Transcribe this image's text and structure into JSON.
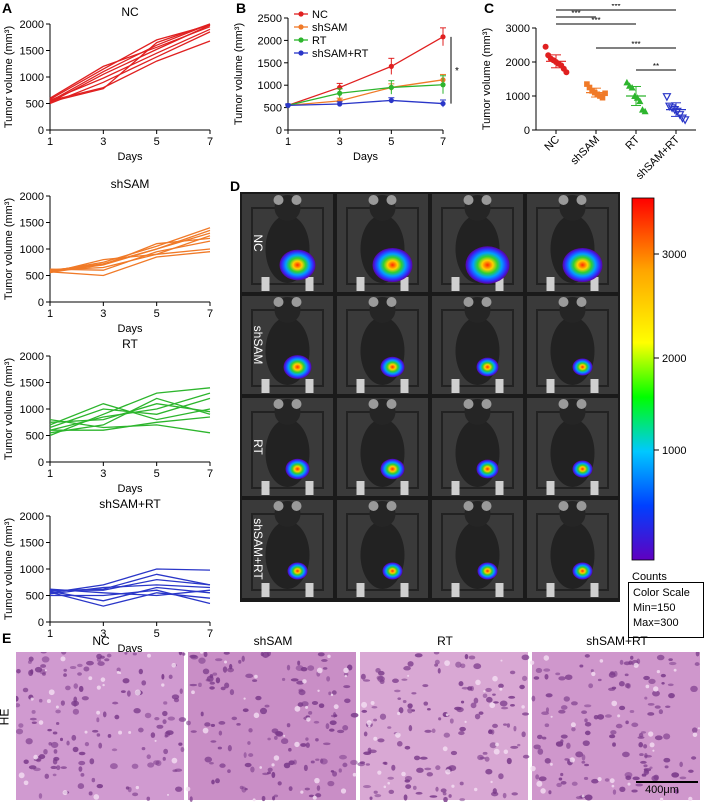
{
  "panels": {
    "A": "A",
    "B": "B",
    "C": "C",
    "D": "D",
    "E": "E"
  },
  "colors": {
    "NC": "#e02020",
    "shSAM": "#f07a28",
    "RT": "#2db52d",
    "shSAM+RT": "#2a36c8"
  },
  "chart_data": [
    {
      "id": "A1",
      "type": "line",
      "title": "NC",
      "xlabel": "Days",
      "ylabel": "Tumor volume (mm³)",
      "x": [
        1,
        3,
        5,
        7
      ],
      "xticks": [
        "1",
        "3",
        "5",
        "7"
      ],
      "ylim": [
        0,
        2000
      ],
      "yticks": [
        "0",
        "500",
        "1000",
        "1500",
        "2000"
      ],
      "color": "#e02020",
      "series": [
        {
          "name": "m1",
          "values": [
            520,
            1050,
            1520,
            1980
          ]
        },
        {
          "name": "m2",
          "values": [
            540,
            1100,
            1600,
            2000
          ]
        },
        {
          "name": "m3",
          "values": [
            560,
            980,
            1450,
            1900
          ]
        },
        {
          "name": "m4",
          "values": [
            580,
            1150,
            1700,
            1980
          ]
        },
        {
          "name": "m5",
          "values": [
            500,
            900,
            1380,
            1850
          ]
        },
        {
          "name": "m6",
          "values": [
            600,
            1200,
            1560,
            1950
          ]
        },
        {
          "name": "m7",
          "values": [
            550,
            800,
            1300,
            1680
          ]
        },
        {
          "name": "m8",
          "values": [
            530,
            780,
            1650,
            2000
          ]
        }
      ]
    },
    {
      "id": "A2",
      "type": "line",
      "title": "shSAM",
      "xlabel": "Days",
      "ylabel": "Tumor volume (mm³)",
      "x": [
        1,
        3,
        5,
        7
      ],
      "xticks": [
        "1",
        "3",
        "5",
        "7"
      ],
      "ylim": [
        0,
        2000
      ],
      "yticks": [
        "0",
        "500",
        "1000",
        "1500",
        "2000"
      ],
      "color": "#f07a28",
      "series": [
        {
          "name": "m1",
          "values": [
            560,
            700,
            1000,
            1350
          ]
        },
        {
          "name": "m2",
          "values": [
            600,
            650,
            900,
            1250
          ]
        },
        {
          "name": "m3",
          "values": [
            580,
            750,
            1050,
            1400
          ]
        },
        {
          "name": "m4",
          "values": [
            620,
            600,
            950,
            1150
          ]
        },
        {
          "name": "m5",
          "values": [
            550,
            800,
            900,
            1000
          ]
        },
        {
          "name": "m6",
          "values": [
            600,
            700,
            1100,
            1200
          ]
        },
        {
          "name": "m7",
          "values": [
            570,
            500,
            850,
            950
          ]
        },
        {
          "name": "m8",
          "values": [
            590,
            720,
            1000,
            1300
          ]
        }
      ]
    },
    {
      "id": "A3",
      "type": "line",
      "title": "RT",
      "xlabel": "Days",
      "ylabel": "Tumor volume (mm³)",
      "x": [
        1,
        3,
        5,
        7
      ],
      "xticks": [
        "1",
        "3",
        "5",
        "7"
      ],
      "ylim": [
        0,
        2000
      ],
      "yticks": [
        "0",
        "500",
        "1000",
        "1500",
        "2000"
      ],
      "color": "#2db52d",
      "series": [
        {
          "name": "m1",
          "values": [
            500,
            900,
            1300,
            1400
          ]
        },
        {
          "name": "m2",
          "values": [
            600,
            850,
            1000,
            1300
          ]
        },
        {
          "name": "m3",
          "values": [
            700,
            1100,
            800,
            1000
          ]
        },
        {
          "name": "m4",
          "values": [
            550,
            700,
            1200,
            900
          ]
        },
        {
          "name": "m5",
          "values": [
            800,
            650,
            700,
            550
          ]
        },
        {
          "name": "m6",
          "values": [
            650,
            1000,
            900,
            1200
          ]
        },
        {
          "name": "m7",
          "values": [
            750,
            800,
            1100,
            950
          ]
        },
        {
          "name": "m8",
          "values": [
            600,
            600,
            750,
            850
          ]
        }
      ]
    },
    {
      "id": "A4",
      "type": "line",
      "title": "shSAM+RT",
      "xlabel": "Days",
      "ylabel": "Tumor volume (mm³)",
      "x": [
        1,
        3,
        5,
        7
      ],
      "xticks": [
        "1",
        "3",
        "5",
        "7"
      ],
      "ylim": [
        0,
        2000
      ],
      "yticks": [
        "0",
        "500",
        "1000",
        "1500",
        "2000"
      ],
      "color": "#2a36c8",
      "series": [
        {
          "name": "m1",
          "values": [
            550,
            700,
            1000,
            980
          ]
        },
        {
          "name": "m2",
          "values": [
            600,
            600,
            800,
            700
          ]
        },
        {
          "name": "m3",
          "values": [
            500,
            500,
            600,
            350
          ]
        },
        {
          "name": "m4",
          "values": [
            580,
            400,
            650,
            550
          ]
        },
        {
          "name": "m5",
          "values": [
            620,
            550,
            500,
            600
          ]
        },
        {
          "name": "m6",
          "values": [
            530,
            650,
            700,
            650
          ]
        },
        {
          "name": "m7",
          "values": [
            560,
            300,
            550,
            450
          ]
        },
        {
          "name": "m8",
          "values": [
            590,
            620,
            900,
            700
          ]
        }
      ]
    },
    {
      "id": "B",
      "type": "line",
      "xlabel": "Days",
      "ylabel": "Tumor volume (mm³)",
      "x": [
        1,
        3,
        5,
        7
      ],
      "xticks": [
        "1",
        "3",
        "5",
        "7"
      ],
      "ylim": [
        0,
        2500
      ],
      "yticks": [
        "0",
        "500",
        "1000",
        "1500",
        "2000",
        "2500"
      ],
      "legend": "top-left",
      "significance": "*",
      "series": [
        {
          "name": "NC",
          "values": [
            550,
            950,
            1420,
            2080
          ],
          "err": [
            30,
            90,
            180,
            200
          ],
          "color": "#e02020"
        },
        {
          "name": "shSAM",
          "values": [
            550,
            650,
            950,
            1120
          ],
          "err": [
            30,
            60,
            80,
            120
          ],
          "color": "#f07a28"
        },
        {
          "name": "RT",
          "values": [
            550,
            820,
            950,
            1010
          ],
          "err": [
            30,
            100,
            150,
            200
          ],
          "color": "#2db52d"
        },
        {
          "name": "shSAM+RT",
          "values": [
            550,
            580,
            660,
            590
          ],
          "err": [
            30,
            50,
            60,
            80
          ],
          "color": "#2a36c8"
        }
      ]
    },
    {
      "id": "C",
      "type": "scatter",
      "ylabel": "Tumor volume (mm³)",
      "categories": [
        "NC",
        "shSAM",
        "RT",
        "shSAM+RT"
      ],
      "ylim": [
        0,
        3000
      ],
      "yticks": [
        "0",
        "1000",
        "2000",
        "3000"
      ],
      "significance": [
        {
          "pair": [
            "NC",
            "shSAM"
          ],
          "label": "***"
        },
        {
          "pair": [
            "NC",
            "RT"
          ],
          "label": "***"
        },
        {
          "pair": [
            "NC",
            "shSAM+RT"
          ],
          "label": "***"
        },
        {
          "pair": [
            "shSAM",
            "shSAM+RT"
          ],
          "label": "***"
        },
        {
          "pair": [
            "RT",
            "shSAM+RT"
          ],
          "label": "**"
        }
      ],
      "series": [
        {
          "name": "NC",
          "marker": "circle",
          "color": "#e02020",
          "mean": 2020,
          "sd": 190,
          "values": [
            2450,
            2200,
            2100,
            2050,
            2000,
            1950,
            1900,
            1800,
            1700
          ]
        },
        {
          "name": "shSAM",
          "marker": "square",
          "color": "#f07a28",
          "mean": 1100,
          "sd": 130,
          "values": [
            1350,
            1250,
            1150,
            1100,
            1050,
            1000,
            950,
            1080
          ]
        },
        {
          "name": "RT",
          "marker": "triangle",
          "color": "#2db52d",
          "mean": 1000,
          "sd": 280,
          "values": [
            1400,
            1300,
            1250,
            1000,
            950,
            850,
            600,
            550
          ]
        },
        {
          "name": "shSAM+RT",
          "marker": "triangle-down",
          "color": "#2a36c8",
          "mean": 600,
          "sd": 200,
          "values": [
            980,
            700,
            650,
            600,
            550,
            450,
            350,
            300
          ]
        }
      ]
    }
  ],
  "imaging": {
    "row_labels": [
      "NC",
      "shSAM",
      "RT",
      "shSAM+RT"
    ],
    "colorbar": {
      "ticks": [
        "3000",
        "2000",
        "1000"
      ],
      "unit_label": "Counts",
      "scale_title": "Color Scale",
      "min_label": "Min=150",
      "max_label": "Max=300"
    }
  },
  "histology": {
    "row_label": "HE",
    "columns": [
      "NC",
      "shSAM",
      "RT",
      "shSAM+RT"
    ],
    "scale_bar": "400μm"
  }
}
